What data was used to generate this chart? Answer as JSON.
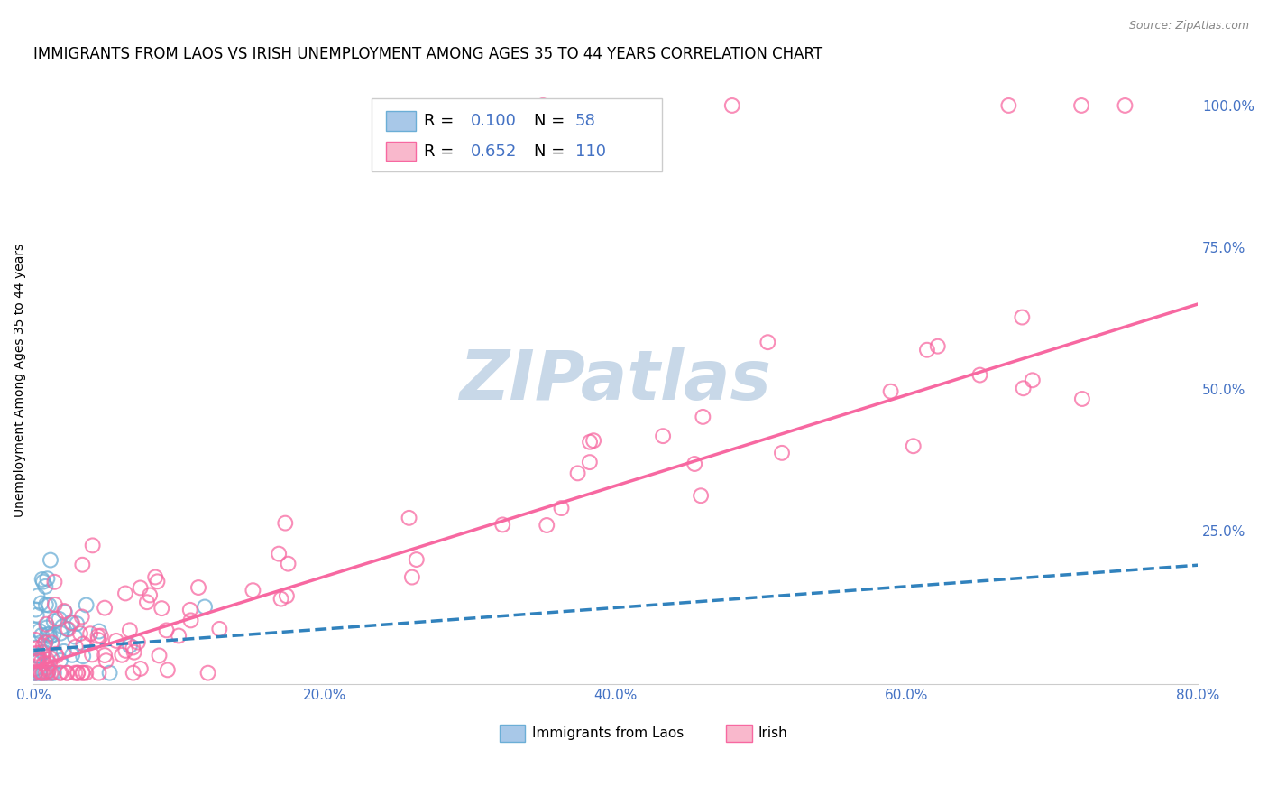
{
  "title": "IMMIGRANTS FROM LAOS VS IRISH UNEMPLOYMENT AMONG AGES 35 TO 44 YEARS CORRELATION CHART",
  "source": "Source: ZipAtlas.com",
  "ylabel": "Unemployment Among Ages 35 to 44 years",
  "xlim": [
    0.0,
    0.8
  ],
  "ylim": [
    -0.02,
    1.05
  ],
  "xtick_labels": [
    "0.0%",
    "20.0%",
    "40.0%",
    "60.0%",
    "80.0%"
  ],
  "xtick_values": [
    0.0,
    0.2,
    0.4,
    0.6,
    0.8
  ],
  "ytick_labels": [
    "100.0%",
    "75.0%",
    "50.0%",
    "25.0%"
  ],
  "ytick_values": [
    1.0,
    0.75,
    0.5,
    0.25
  ],
  "legend1_r": "0.100",
  "legend1_n": "58",
  "legend2_r": "0.652",
  "legend2_n": "110",
  "legend1_color": "#a8c8e8",
  "legend1_edge": "#6baed6",
  "legend2_color": "#f9b8cc",
  "legend2_edge": "#f768a1",
  "line1_color": "#3182bd",
  "line2_color": "#f768a1",
  "watermark": "ZIPatlas",
  "watermark_color": "#c8d8e8",
  "title_fontsize": 12,
  "axis_label_fontsize": 10,
  "tick_fontsize": 11,
  "right_tick_color": "#4472c4",
  "bottom_tick_color": "#4472c4",
  "grid_color": "#e0e0e0",
  "background_color": "#ffffff",
  "irish_line_start_x": 0.0,
  "irish_line_start_y": 0.01,
  "irish_line_end_x": 0.8,
  "irish_line_end_y": 0.65,
  "laos_line_start_x": 0.0,
  "laos_line_start_y": 0.04,
  "laos_line_end_x": 0.8,
  "laos_line_end_y": 0.19
}
